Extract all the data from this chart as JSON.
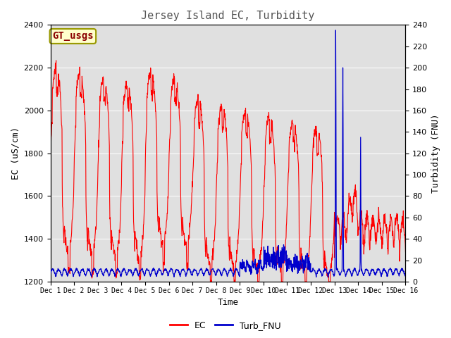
{
  "title": "Jersey Island EC, Turbidity",
  "xlabel": "Time",
  "ylabel_left": "EC (uS/cm)",
  "ylabel_right": "Turbidity (FNU)",
  "legend_label_ec": "EC",
  "legend_label_turb": "Turb_FNU",
  "annotation_text": "GT_usgs",
  "ec_color": "#ff0000",
  "turb_color": "#0000cc",
  "fig_bg_color": "#ffffff",
  "plot_bg_color": "#e0e0e0",
  "ylim_left": [
    1200,
    2400
  ],
  "ylim_right": [
    0,
    240
  ],
  "yticks_left": [
    1200,
    1400,
    1600,
    1800,
    2000,
    2200,
    2400
  ],
  "yticks_right": [
    0,
    20,
    40,
    60,
    80,
    100,
    120,
    140,
    160,
    180,
    200,
    220,
    240
  ],
  "n_days": 15,
  "title_fontsize": 11,
  "label_fontsize": 9,
  "tick_fontsize": 8,
  "annot_fontsize": 10
}
